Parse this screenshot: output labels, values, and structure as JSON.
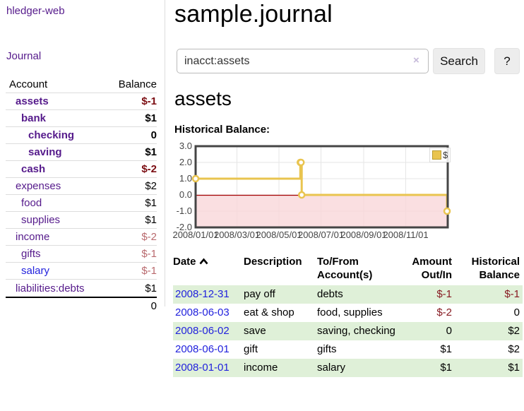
{
  "colors": {
    "accent_purple": "#551a8b",
    "link_blue": "#2222dd",
    "negative_strong": "#7b0d12",
    "negative_soft": "#b96a6e",
    "row_stripe_green": "#dff0d8",
    "chart_line_gold": "#e9c44f",
    "chart_negative_pink": "#f9d7d9",
    "chart_zero_red": "#a40000"
  },
  "sidebar": {
    "app_title": "hledger-web",
    "nav_journal": "Journal",
    "header": {
      "account": "Account",
      "balance": "Balance"
    },
    "accounts": [
      {
        "name": "assets",
        "depth": 1,
        "strong": true,
        "negative": "strong",
        "balance": "$-1"
      },
      {
        "name": "bank",
        "depth": 2,
        "strong": true,
        "negative": "",
        "balance": "$1"
      },
      {
        "name": "checking",
        "depth": 3,
        "strong": true,
        "negative": "",
        "balance": "0"
      },
      {
        "name": "saving",
        "depth": 3,
        "strong": true,
        "negative": "",
        "balance": "$1"
      },
      {
        "name": "cash",
        "depth": 2,
        "strong": true,
        "negative": "strong",
        "balance": "$-2"
      },
      {
        "name": "expenses",
        "depth": 1,
        "strong": false,
        "negative": "",
        "balance": "$2"
      },
      {
        "name": "food",
        "depth": 2,
        "strong": false,
        "negative": "",
        "balance": "$1"
      },
      {
        "name": "supplies",
        "depth": 2,
        "strong": false,
        "negative": "",
        "balance": "$1"
      },
      {
        "name": "income",
        "depth": 1,
        "strong": false,
        "negative": "soft",
        "balance": "$-2"
      },
      {
        "name": "gifts",
        "depth": 2,
        "strong": false,
        "negative": "soft",
        "balance": "$-1"
      },
      {
        "name": "salary",
        "depth": 2,
        "strong": false,
        "negative": "soft",
        "balance": "$-1",
        "link": "blue"
      },
      {
        "name": "liabilities:debts",
        "depth": 1,
        "strong": false,
        "negative": "",
        "balance": "$1"
      }
    ],
    "total": "0"
  },
  "main": {
    "title": "sample.journal",
    "search": {
      "value": "inacct:assets",
      "clear": "×",
      "button": "Search",
      "help": "?"
    },
    "account_heading": "assets",
    "chart_label": "Historical Balance:"
  },
  "chart_data": {
    "type": "line",
    "step": true,
    "title": "Historical Balance",
    "series": [
      {
        "name": "$",
        "points": [
          {
            "date": "2008-01-01",
            "value": 1
          },
          {
            "date": "2008-06-01",
            "value": 2
          },
          {
            "date": "2008-06-02",
            "value": 2
          },
          {
            "date": "2008-06-03",
            "value": 0
          },
          {
            "date": "2008-12-31",
            "value": -1
          }
        ]
      }
    ],
    "x_ticks": [
      "2008/01/01",
      "2008/03/01",
      "2008/05/01",
      "2008/07/01",
      "2008/09/01",
      "2008/11/01"
    ],
    "y_ticks": [
      "3.0",
      "2.0",
      "1.0",
      "0.0",
      "-1.0",
      "-2.0"
    ],
    "xlim": [
      "2008-01-01",
      "2009-01-01"
    ],
    "ylim": [
      -2,
      3
    ],
    "grid": true,
    "negative_region_shaded": true,
    "legend": {
      "label": "$",
      "position": "top-right"
    }
  },
  "register": {
    "headers": [
      {
        "l1": "Date",
        "l2": "",
        "align": "left",
        "sort": "asc"
      },
      {
        "l1": "Description",
        "l2": "",
        "align": "left"
      },
      {
        "l1": "To/From",
        "l2": "Account(s)",
        "align": "left"
      },
      {
        "l1": "Amount",
        "l2": "Out/In",
        "align": "right"
      },
      {
        "l1": "Historical",
        "l2": "Balance",
        "align": "right"
      }
    ],
    "rows": [
      {
        "date": "2008-12-31",
        "description": "pay off",
        "accounts": "debts",
        "amount": "$-1",
        "amount_negative": true,
        "balance": "$-1",
        "balance_negative": true,
        "shaded": true
      },
      {
        "date": "2008-06-03",
        "description": "eat & shop",
        "accounts": "food, supplies",
        "amount": "$-2",
        "amount_negative": true,
        "balance": "0",
        "balance_negative": false,
        "shaded": false
      },
      {
        "date": "2008-06-02",
        "description": "save",
        "accounts": "saving, checking",
        "amount": "0",
        "amount_negative": false,
        "balance": "$2",
        "balance_negative": false,
        "shaded": true
      },
      {
        "date": "2008-06-01",
        "description": "gift",
        "accounts": "gifts",
        "amount": "$1",
        "amount_negative": false,
        "balance": "$2",
        "balance_negative": false,
        "shaded": false
      },
      {
        "date": "2008-01-01",
        "description": "income",
        "accounts": "salary",
        "amount": "$1",
        "amount_negative": false,
        "balance": "$1",
        "balance_negative": false,
        "shaded": true
      }
    ]
  }
}
